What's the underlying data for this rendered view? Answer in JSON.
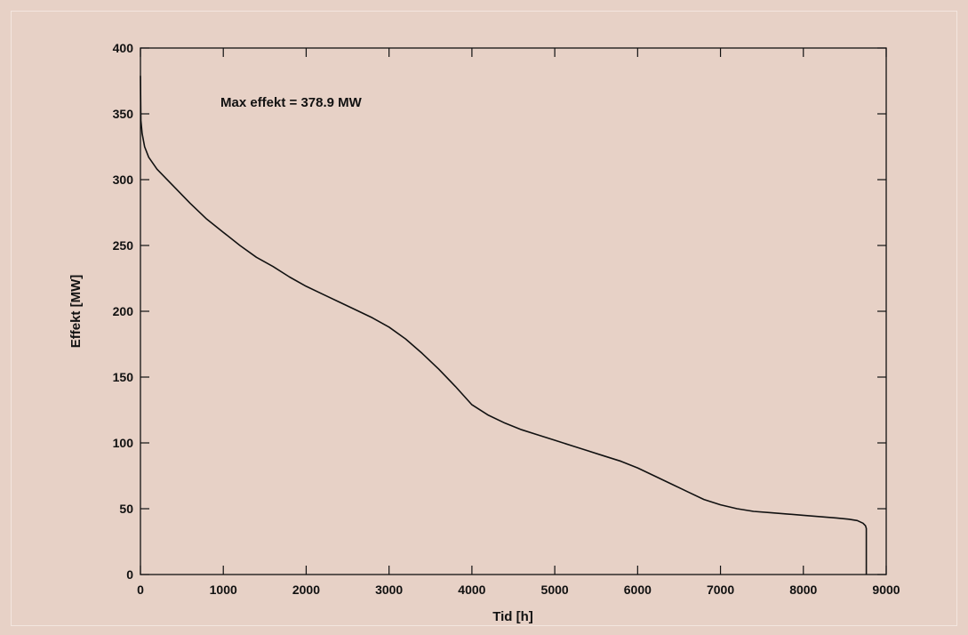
{
  "chart_data": {
    "type": "line",
    "title": "",
    "xlabel": "Tid [h]",
    "ylabel": "Effekt [MW]",
    "xlim": [
      0,
      9000
    ],
    "ylim": [
      0,
      400
    ],
    "xticks": [
      0,
      1000,
      2000,
      3000,
      4000,
      5000,
      6000,
      7000,
      8000,
      9000
    ],
    "yticks": [
      0,
      50,
      100,
      150,
      200,
      250,
      300,
      350,
      400
    ],
    "grid": false,
    "annotation": "Max effekt = 378.9 MW",
    "series": [
      {
        "color": "#111111",
        "x": [
          0,
          5,
          20,
          50,
          100,
          200,
          400,
          600,
          800,
          1000,
          1200,
          1400,
          1600,
          1800,
          2000,
          2200,
          2400,
          2600,
          2800,
          3000,
          3200,
          3400,
          3600,
          3800,
          4000,
          4200,
          4400,
          4600,
          4800,
          5000,
          5200,
          5400,
          5600,
          5800,
          6000,
          6200,
          6400,
          6600,
          6800,
          7000,
          7200,
          7400,
          7600,
          7800,
          8000,
          8200,
          8400,
          8550,
          8650,
          8720,
          8750,
          8760,
          8760
        ],
        "y": [
          378.9,
          345,
          335,
          325,
          317,
          308,
          295,
          282,
          270,
          260,
          250,
          241,
          234,
          226,
          219,
          213,
          207,
          201,
          195,
          188,
          179,
          168,
          156,
          143,
          129,
          121,
          115,
          110,
          106,
          102,
          98,
          94,
          90,
          86,
          81,
          75,
          69,
          63,
          57,
          53,
          50,
          48,
          47,
          46,
          45,
          44,
          43,
          42,
          41,
          39,
          37,
          35,
          0
        ]
      }
    ]
  }
}
